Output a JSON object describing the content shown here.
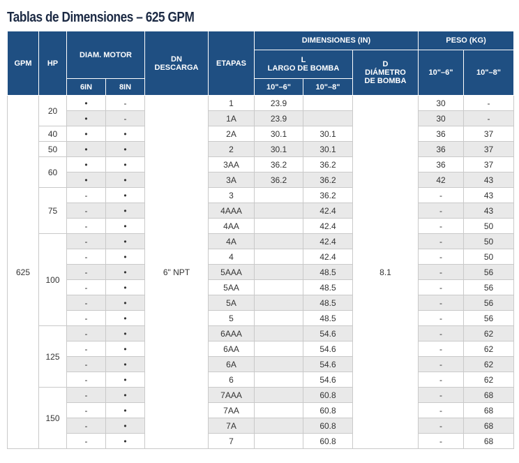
{
  "title": "Tablas de Dimensiones – 625 GPM",
  "headers": {
    "gpm": "GPM",
    "hp": "HP",
    "diam_motor": "DIAM. MOTOR",
    "in6": "6IN",
    "in8": "8IN",
    "dn_1": "DN",
    "dn_2": "DESCARGA",
    "etapas": "ETAPAS",
    "dimensiones": "DIMENSIONES (IN)",
    "l_1": "L",
    "l_2": "LARGO DE BOMBA",
    "d_1": "D",
    "d_2": "DIÁMETRO",
    "d_3": "DE BOMBA",
    "peso": "PESO (KG)",
    "c106": "10\"–6\"",
    "c108": "10\"–8\""
  },
  "gpm": "625",
  "dn_descarga": "6\" NPT",
  "diametro": "8.1",
  "hp_groups": [
    {
      "hp": "20",
      "rows": 2
    },
    {
      "hp": "40",
      "rows": 1
    },
    {
      "hp": "50",
      "rows": 1
    },
    {
      "hp": "60",
      "rows": 2
    },
    {
      "hp": "75",
      "rows": 3
    },
    {
      "hp": "100",
      "rows": 6
    },
    {
      "hp": "125",
      "rows": 4
    },
    {
      "hp": "150",
      "rows": 4
    }
  ],
  "rows": [
    {
      "m6": "•",
      "m8": "-",
      "etapa": "1",
      "l6": "23.9",
      "l8": "",
      "p6": "30",
      "p8": "-"
    },
    {
      "m6": "•",
      "m8": "-",
      "etapa": "1A",
      "l6": "23.9",
      "l8": "",
      "p6": "30",
      "p8": "-"
    },
    {
      "m6": "•",
      "m8": "•",
      "etapa": "2A",
      "l6": "30.1",
      "l8": "30.1",
      "p6": "36",
      "p8": "37"
    },
    {
      "m6": "•",
      "m8": "•",
      "etapa": "2",
      "l6": "30.1",
      "l8": "30.1",
      "p6": "36",
      "p8": "37"
    },
    {
      "m6": "•",
      "m8": "•",
      "etapa": "3AA",
      "l6": "36.2",
      "l8": "36.2",
      "p6": "36",
      "p8": "37"
    },
    {
      "m6": "•",
      "m8": "•",
      "etapa": "3A",
      "l6": "36.2",
      "l8": "36.2",
      "p6": "42",
      "p8": "43"
    },
    {
      "m6": "-",
      "m8": "•",
      "etapa": "3",
      "l6": "",
      "l8": "36.2",
      "p6": "-",
      "p8": "43"
    },
    {
      "m6": "-",
      "m8": "•",
      "etapa": "4AAA",
      "l6": "",
      "l8": "42.4",
      "p6": "-",
      "p8": "43"
    },
    {
      "m6": "-",
      "m8": "•",
      "etapa": "4AA",
      "l6": "",
      "l8": "42.4",
      "p6": "-",
      "p8": "50"
    },
    {
      "m6": "-",
      "m8": "•",
      "etapa": "4A",
      "l6": "",
      "l8": "42.4",
      "p6": "-",
      "p8": "50"
    },
    {
      "m6": "-",
      "m8": "•",
      "etapa": "4",
      "l6": "",
      "l8": "42.4",
      "p6": "-",
      "p8": "50"
    },
    {
      "m6": "-",
      "m8": "•",
      "etapa": "5AAA",
      "l6": "",
      "l8": "48.5",
      "p6": "-",
      "p8": "56"
    },
    {
      "m6": "-",
      "m8": "•",
      "etapa": "5AA",
      "l6": "",
      "l8": "48.5",
      "p6": "-",
      "p8": "56"
    },
    {
      "m6": "-",
      "m8": "•",
      "etapa": "5A",
      "l6": "",
      "l8": "48.5",
      "p6": "-",
      "p8": "56"
    },
    {
      "m6": "-",
      "m8": "•",
      "etapa": "5",
      "l6": "",
      "l8": "48.5",
      "p6": "-",
      "p8": "56"
    },
    {
      "m6": "-",
      "m8": "•",
      "etapa": "6AAA",
      "l6": "",
      "l8": "54.6",
      "p6": "-",
      "p8": "62"
    },
    {
      "m6": "-",
      "m8": "•",
      "etapa": "6AA",
      "l6": "",
      "l8": "54.6",
      "p6": "-",
      "p8": "62"
    },
    {
      "m6": "-",
      "m8": "•",
      "etapa": "6A",
      "l6": "",
      "l8": "54.6",
      "p6": "-",
      "p8": "62"
    },
    {
      "m6": "-",
      "m8": "•",
      "etapa": "6",
      "l6": "",
      "l8": "54.6",
      "p6": "-",
      "p8": "62"
    },
    {
      "m6": "-",
      "m8": "•",
      "etapa": "7AAA",
      "l6": "",
      "l8": "60.8",
      "p6": "-",
      "p8": "68"
    },
    {
      "m6": "-",
      "m8": "•",
      "etapa": "7AA",
      "l6": "",
      "l8": "60.8",
      "p6": "-",
      "p8": "68"
    },
    {
      "m6": "-",
      "m8": "•",
      "etapa": "7A",
      "l6": "",
      "l8": "60.8",
      "p6": "-",
      "p8": "68"
    },
    {
      "m6": "-",
      "m8": "•",
      "etapa": "7",
      "l6": "",
      "l8": "60.8",
      "p6": "-",
      "p8": "68"
    }
  ]
}
